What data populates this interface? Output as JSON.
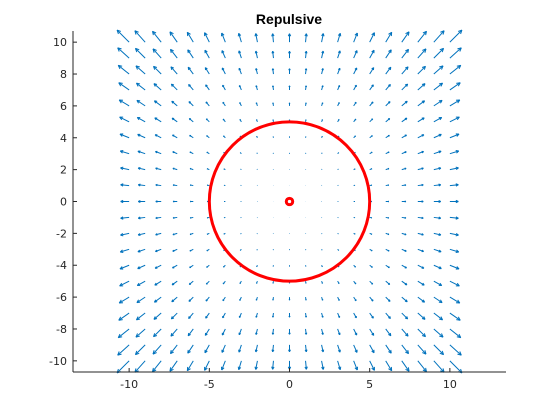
{
  "chart_data": {
    "type": "quiver",
    "title": "Repulsive",
    "xlabel": "",
    "ylabel": "",
    "xlim": [
      -13.5,
      13.5
    ],
    "ylim": [
      -10.7,
      10.7
    ],
    "x_ticks": [
      -10,
      -5,
      0,
      5,
      10
    ],
    "y_ticks": [
      -10,
      -8,
      -6,
      -4,
      -2,
      0,
      2,
      4,
      6,
      8,
      10
    ],
    "x_tick_labels": [
      "-10",
      "-5",
      "0",
      "5",
      "10"
    ],
    "y_tick_labels": [
      "-10",
      "-8",
      "-6",
      "-4",
      "-2",
      "0",
      "2",
      "4",
      "6",
      "8",
      "10"
    ],
    "grid": false,
    "vector_field": {
      "x_range": [
        -10,
        10
      ],
      "y_range": [
        -10,
        10
      ],
      "step": 1,
      "field": "repulsive radial (outward from origin), magnitude increasing with distance from origin",
      "color": "#0072BD"
    },
    "circles": [
      {
        "name": "",
        "center": [
          0,
          0
        ],
        "radius": 5,
        "color": "#FF0000"
      },
      {
        "name": "",
        "center": [
          0,
          0
        ],
        "radius": 0.2,
        "color": "#FF0000"
      }
    ],
    "axis_color": "#262626"
  }
}
